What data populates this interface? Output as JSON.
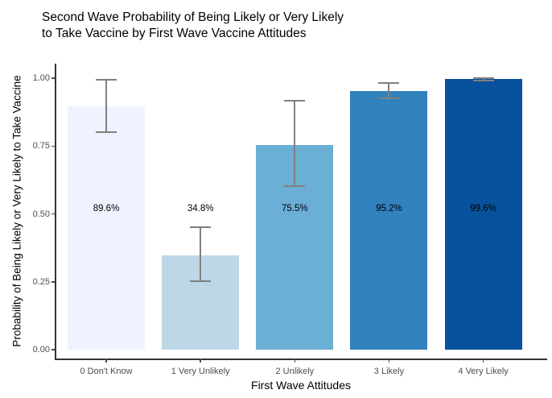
{
  "title": {
    "line1": "Second Wave Probability of Being Likely or Very Likely",
    "line2": "to Take Vaccine by First Wave Vaccine Attitudes"
  },
  "chart_data": {
    "type": "bar",
    "title": "Second Wave Probability of Being Likely or Very Likely to Take Vaccine by First Wave Vaccine Attitudes",
    "xlabel": "First Wave Attitudes",
    "ylabel": "Probability of Being Likely or Very Likely to Take Vaccine",
    "categories": [
      "0 Don't Know",
      "1 Very Unlikely",
      "2 Unlikely",
      "3 Likely",
      "4 Very Likely"
    ],
    "values": [
      0.896,
      0.348,
      0.755,
      0.952,
      0.996
    ],
    "bar_labels": [
      "89.6%",
      "34.8%",
      "75.5%",
      "95.2%",
      "99.6%"
    ],
    "bar_label_y": 0.52,
    "error_low": [
      0.8,
      0.253,
      0.602,
      0.927,
      0.991
    ],
    "error_high": [
      0.994,
      0.452,
      0.917,
      0.982,
      1.0
    ],
    "bar_colors": [
      "#EFF3FF",
      "#BDD7E7",
      "#6BAED6",
      "#3182BD",
      "#08519C"
    ],
    "error_bar_color": "#808080",
    "ytick_labels": [
      "0.00",
      "0.25",
      "0.50",
      "0.75",
      "1.00"
    ],
    "ytick_values": [
      0.0,
      0.25,
      0.5,
      0.75,
      1.0
    ],
    "ylim": [
      0,
      1
    ],
    "grid": false,
    "legend": false,
    "background": "#ffffff"
  }
}
